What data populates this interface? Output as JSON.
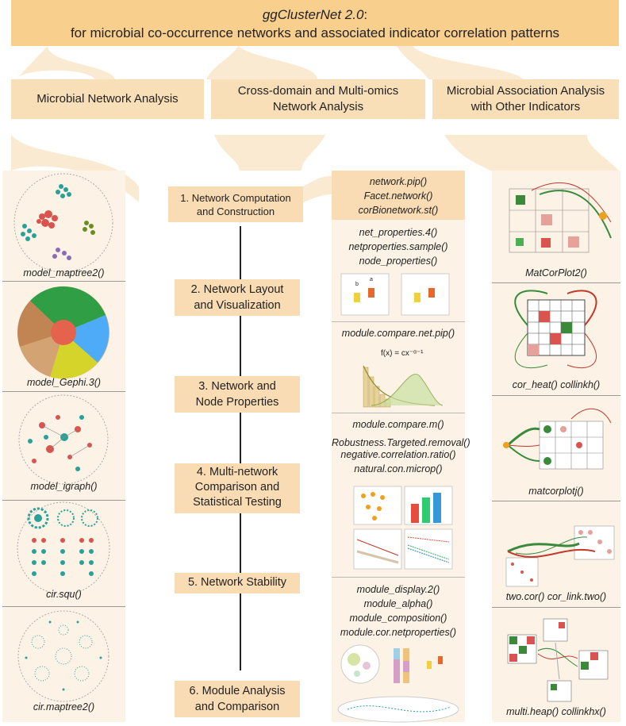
{
  "title": {
    "name": "ggClusterNet 2.0",
    "suffix": ":",
    "subtitle": "for microbial co-occurrence networks and associated indicator correlation patterns"
  },
  "sections": [
    {
      "label": "Microbial Network Analysis"
    },
    {
      "label_l1": "Cross-domain and Multi-omics",
      "label_l2": "Network Analysis"
    },
    {
      "label_l1": "Microbial Association Analysis",
      "label_l2": "with Other Indicators"
    }
  ],
  "left_panels": [
    "model_maptree2()",
    "model_Gephi.3()",
    "model_igraph()",
    "cir.squ()",
    "cir.maptree2()"
  ],
  "steps": [
    {
      "l1": "1. Network Computation",
      "l2": "and Construction"
    },
    {
      "l1": "2. Network Layout",
      "l2": "and Visualization"
    },
    {
      "l1": "3. Network and",
      "l2": "Node Properties"
    },
    {
      "l1": "4. Multi-network",
      "l2": "Comparison and",
      "l3": "Statistical Testing"
    },
    {
      "l1": "5. Network Stability"
    },
    {
      "l1": "6. Module Analysis",
      "l2": "and Comparison"
    }
  ],
  "functions": {
    "g1": [
      "network.pip()",
      "Facet.network()",
      "corBionetwork.st()"
    ],
    "g2": [
      "net_properties.4()",
      "netproperties.sample()",
      "node_properties()"
    ],
    "g3": [
      "module.compare.net.pip()"
    ],
    "g3_formula": "f(x) = cx⁻ᵅ⁻¹",
    "g4": [
      "module.compare.m()",
      "Robustness.Targeted.removal()",
      "negative.correlation.ratio()",
      "natural.con.microp()"
    ],
    "g5": [
      "module_display.2()",
      "module_alpha()",
      "module_composition()",
      "module.cor.netproperties()"
    ]
  },
  "right_panels": [
    "MatCorPlot2()",
    "cor_heat() collinkh()",
    "matcorplotj()",
    "two.cor() cor_link.two()",
    "multi.heap()  collinkhx()"
  ],
  "mini_labels": {
    "a": "a",
    "b": "b"
  },
  "colors": {
    "title_bg": "#f9cf8e",
    "section_bg": "#f8dfb8",
    "panel_bg": "#fcf3e6",
    "teal": "#2aa198",
    "red": "#d9534f",
    "green": "#3a8a3a",
    "orange": "#f0a020"
  }
}
